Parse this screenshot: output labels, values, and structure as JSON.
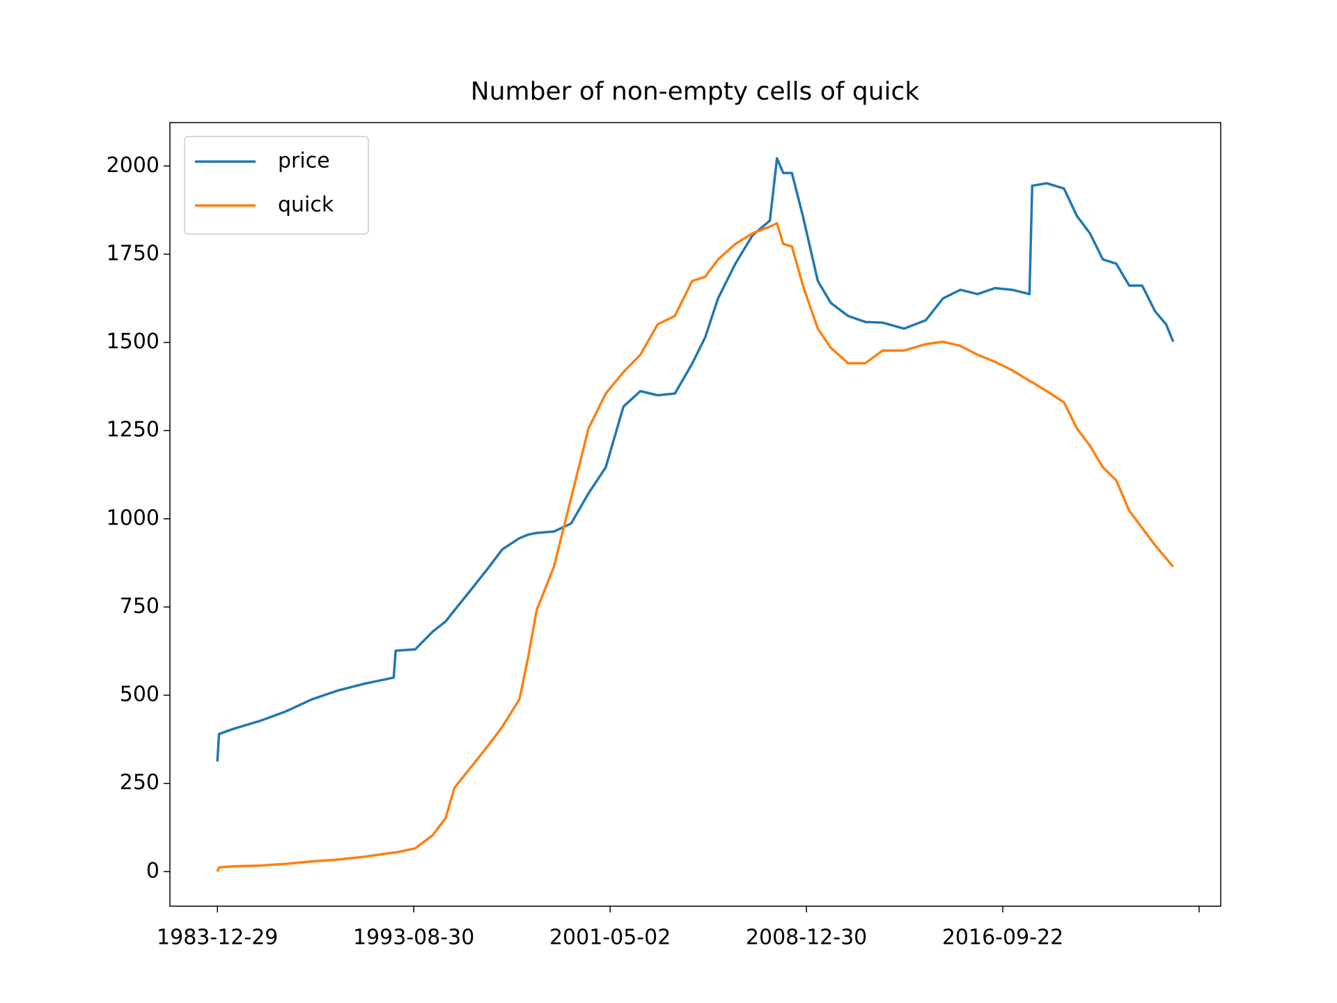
{
  "chart_data": {
    "type": "line",
    "title": "Number of non-empty cells of quick",
    "x": [
      0,
      4,
      42,
      108,
      174,
      240,
      306,
      372,
      449,
      454,
      504,
      548,
      581,
      604,
      648,
      692,
      725,
      769,
      791,
      813,
      857,
      901,
      945,
      989,
      1034,
      1077,
      1121,
      1165,
      1209,
      1242,
      1275,
      1319,
      1363,
      1407,
      1425,
      1441,
      1463,
      1491,
      1529,
      1562,
      1606,
      1650,
      1694,
      1749,
      1804,
      1848,
      1892,
      1936,
      1980,
      2024,
      2068,
      2075,
      2112,
      2156,
      2189,
      2222,
      2255,
      2289,
      2322,
      2355,
      2388,
      2416,
      2434
    ],
    "series": [
      {
        "name": "price",
        "color": "#1f77b4",
        "values": [
          312,
          390,
          405,
          427,
          454,
          488,
          513,
          532,
          550,
          626,
          630,
          680,
          709,
          741,
          802,
          864,
          913,
          945,
          955,
          960,
          964,
          987,
          1072,
          1146,
          1318,
          1362,
          1350,
          1355,
          1440,
          1514,
          1625,
          1723,
          1804,
          1845,
          2022,
          1980,
          1980,
          1858,
          1674,
          1612,
          1575,
          1558,
          1556,
          1539,
          1563,
          1625,
          1649,
          1637,
          1654,
          1649,
          1637,
          1944,
          1951,
          1936,
          1858,
          1809,
          1735,
          1723,
          1661,
          1661,
          1588,
          1551,
          1502
        ]
      },
      {
        "name": "quick",
        "color": "#ff7f0e",
        "values": [
          0,
          12,
          15,
          17,
          22,
          29,
          34,
          42,
          54,
          54,
          66,
          103,
          152,
          238,
          299,
          361,
          410,
          488,
          606,
          741,
          864,
          1060,
          1256,
          1355,
          1416,
          1465,
          1551,
          1575,
          1674,
          1686,
          1735,
          1779,
          1809,
          1828,
          1838,
          1779,
          1772,
          1661,
          1539,
          1485,
          1441,
          1441,
          1477,
          1477,
          1495,
          1502,
          1490,
          1465,
          1445,
          1421,
          1391,
          1387,
          1362,
          1330,
          1256,
          1207,
          1146,
          1109,
          1023,
          974,
          925,
          888,
          864
        ]
      }
    ],
    "xlim": [
      -121,
      2555
    ],
    "xticks": [
      {
        "value": 0,
        "label": "1983-12-29"
      },
      {
        "value": 500,
        "label": "1993-08-30"
      },
      {
        "value": 1000,
        "label": "2001-05-02"
      },
      {
        "value": 1500,
        "label": "2008-12-30"
      },
      {
        "value": 2000,
        "label": "2016-09-22"
      },
      {
        "value": 2500,
        "label": null
      }
    ],
    "ylim": [
      -98,
      2123
    ],
    "yticks": [
      0,
      250,
      500,
      750,
      1000,
      1250,
      1500,
      1750,
      2000
    ],
    "legend": "upper left"
  }
}
